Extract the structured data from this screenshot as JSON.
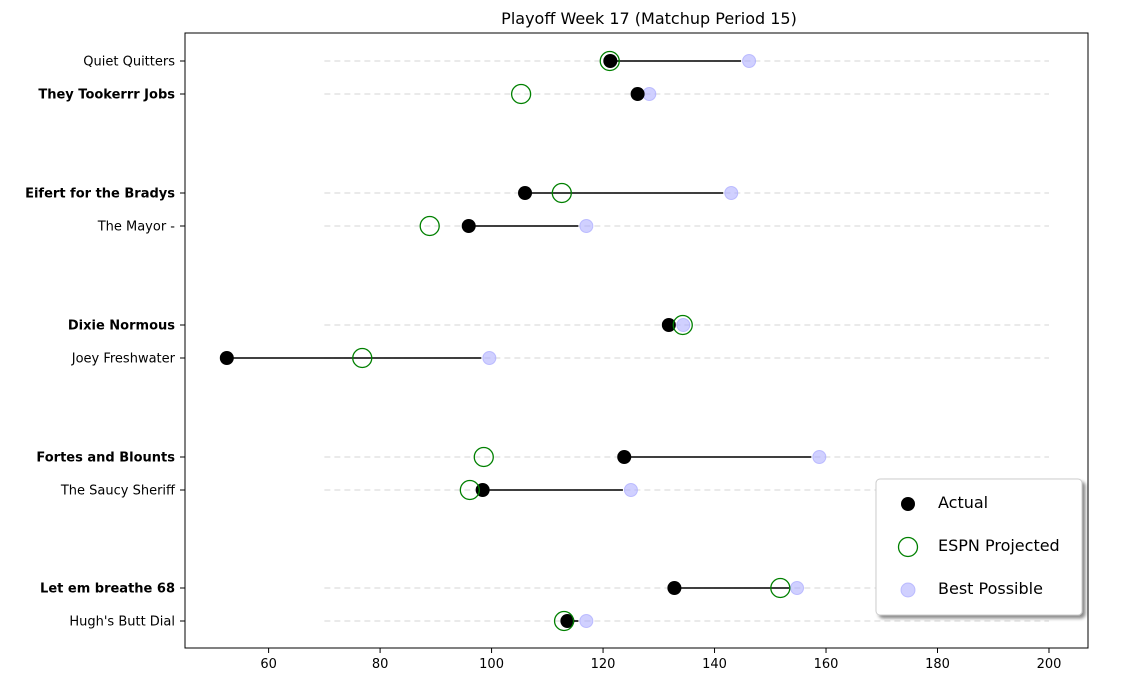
{
  "chart_data": {
    "type": "scatter",
    "title": "Playoff Week 17 (Matchup Period 15)",
    "xlim": [
      45,
      207
    ],
    "x_ticks": [
      60,
      80,
      100,
      120,
      140,
      160,
      180,
      200
    ],
    "grid": "horizontal dashed guide per team",
    "legend_position": "bottom-right",
    "series_names": [
      "Actual",
      "ESPN Projected",
      "Best Possible"
    ],
    "colors": {
      "actual": "#000000",
      "projected": "#008000",
      "best": "#aaaaff",
      "grid": "#dddddd"
    },
    "teams": [
      {
        "name": "Quiet Quitters",
        "bold": false,
        "actual": 121.3,
        "projected": 121.2,
        "best": 146.2
      },
      {
        "name": "They Tookerrr Jobs",
        "bold": true,
        "actual": 126.2,
        "projected": 105.3,
        "best": 128.3
      },
      {
        "name": "Eifert  for the Bradys",
        "bold": true,
        "actual": 106.0,
        "projected": 112.6,
        "best": 143.0
      },
      {
        "name": "The Mayor -",
        "bold": false,
        "actual": 95.9,
        "projected": 88.9,
        "best": 117.0
      },
      {
        "name": "Dixie Normous",
        "bold": true,
        "actual": 131.8,
        "projected": 134.3,
        "best": 134.4
      },
      {
        "name": "Joey Freshwater",
        "bold": false,
        "actual": 52.5,
        "projected": 76.8,
        "best": 99.6
      },
      {
        "name": "Fortes and Blounts",
        "bold": true,
        "actual": 123.8,
        "projected": 98.6,
        "best": 158.8
      },
      {
        "name": "The Saucy Sheriff",
        "bold": false,
        "actual": 98.4,
        "projected": 96.1,
        "best": 125.0
      },
      {
        "name": "Let em breathe 68",
        "bold": true,
        "actual": 132.8,
        "projected": 151.8,
        "best": 154.8
      },
      {
        "name": "Hugh's  Butt Dial",
        "bold": false,
        "actual": 113.6,
        "projected": 113.0,
        "best": 117.0
      }
    ]
  }
}
